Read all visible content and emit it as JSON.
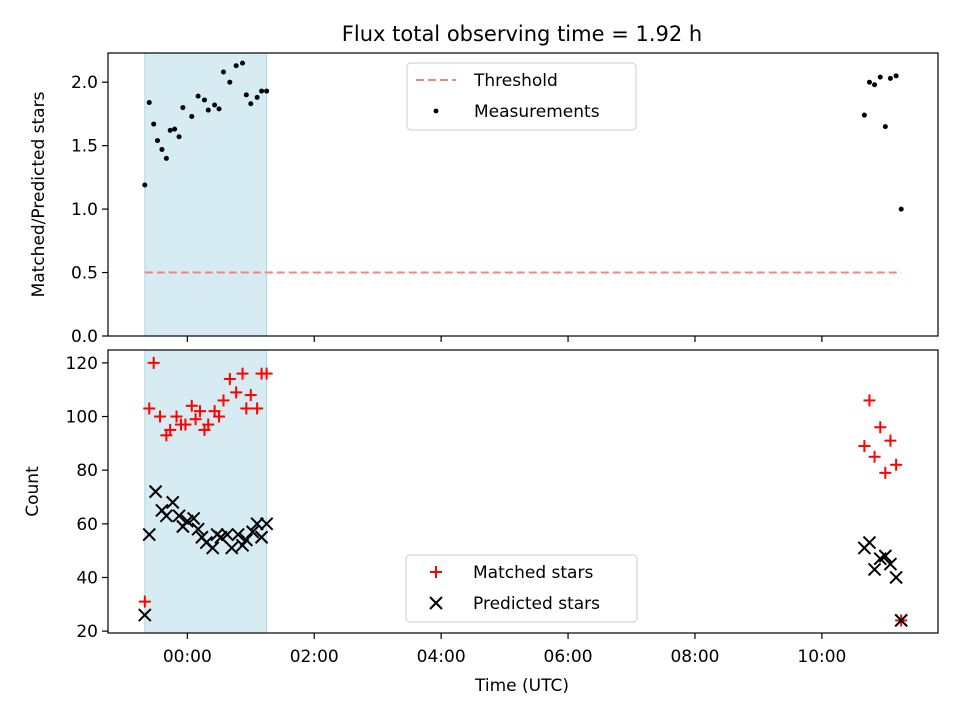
{
  "chart_data": [
    {
      "type": "scatter",
      "title": "Flux total observing time = 1.92 h",
      "xlabel": "",
      "ylabel": "Matched/Predicted stars",
      "xlim_hours": [
        -1.25,
        11.83
      ],
      "ylim": [
        0,
        2.23
      ],
      "yticks": [
        0.0,
        0.5,
        1.0,
        1.5,
        2.0
      ],
      "ytick_labels": [
        "0.0",
        "0.5",
        "1.0",
        "1.5",
        "2.0"
      ],
      "shaded_interval_hours": [
        -0.67,
        1.25
      ],
      "shade_color": "#add8e6",
      "legend_position": "upper center",
      "threshold": {
        "name": "Threshold",
        "value": 0.5,
        "x_range_hours": [
          -0.67,
          11.25
        ],
        "color": "#ff7f7f",
        "style": "dashed"
      },
      "series": [
        {
          "name": "Measurements",
          "marker": "dot",
          "color": "#000000",
          "x": [
            -0.67,
            -0.6,
            -0.53,
            -0.47,
            -0.4,
            -0.33,
            -0.27,
            -0.2,
            -0.13,
            -0.07,
            0.07,
            0.17,
            0.27,
            0.33,
            0.43,
            0.5,
            0.57,
            0.67,
            0.77,
            0.87,
            0.93,
            1.0,
            1.1,
            1.17,
            1.25,
            10.67,
            10.75,
            10.83,
            10.92,
            11.0,
            11.08,
            11.17,
            11.25
          ],
          "y": [
            1.19,
            1.84,
            1.67,
            1.54,
            1.47,
            1.4,
            1.62,
            1.63,
            1.57,
            1.8,
            1.73,
            1.89,
            1.86,
            1.78,
            1.82,
            1.79,
            2.08,
            2.0,
            2.13,
            2.15,
            1.9,
            1.83,
            1.88,
            1.93,
            1.93,
            1.74,
            2.0,
            1.98,
            2.04,
            1.65,
            2.03,
            2.05,
            1.0
          ]
        }
      ]
    },
    {
      "type": "scatter",
      "title": "",
      "xlabel": "Time (UTC)",
      "ylabel": "Count",
      "xlim_hours": [
        -1.25,
        11.83
      ],
      "ylim": [
        19.3,
        124.8
      ],
      "yticks": [
        20,
        40,
        60,
        80,
        100,
        120
      ],
      "ytick_labels": [
        "20",
        "40",
        "60",
        "80",
        "100",
        "120"
      ],
      "xticks_hours": [
        0,
        2,
        4,
        6,
        8,
        10
      ],
      "xtick_labels": [
        "00:00",
        "02:00",
        "04:00",
        "06:00",
        "08:00",
        "10:00"
      ],
      "shaded_interval_hours": [
        -0.67,
        1.25
      ],
      "shade_color": "#add8e6",
      "legend_position": "lower center",
      "series": [
        {
          "name": "Matched stars",
          "marker": "plus",
          "color": "#ff0000",
          "x": [
            -0.67,
            -0.6,
            -0.53,
            -0.43,
            -0.33,
            -0.27,
            -0.17,
            -0.1,
            -0.03,
            0.07,
            0.13,
            0.2,
            0.27,
            0.33,
            0.43,
            0.5,
            0.57,
            0.67,
            0.77,
            0.87,
            0.93,
            1.0,
            1.1,
            1.17,
            1.25,
            10.67,
            10.75,
            10.83,
            10.92,
            11.0,
            11.08,
            11.17,
            11.25
          ],
          "y": [
            31,
            103,
            120,
            100,
            93,
            95,
            100,
            97,
            97,
            104,
            99,
            102,
            95,
            97,
            102,
            100,
            106,
            114,
            109,
            116,
            103,
            108,
            103,
            116,
            116,
            89,
            106,
            85,
            96,
            79,
            91,
            82,
            24
          ]
        },
        {
          "name": "Predicted stars",
          "marker": "x",
          "color": "#000000",
          "x": [
            -0.67,
            -0.6,
            -0.5,
            -0.4,
            -0.33,
            -0.23,
            -0.13,
            -0.07,
            0.0,
            0.1,
            0.17,
            0.23,
            0.3,
            0.4,
            0.47,
            0.53,
            0.63,
            0.7,
            0.8,
            0.87,
            0.93,
            1.03,
            1.1,
            1.17,
            1.25,
            10.67,
            10.75,
            10.83,
            10.92,
            11.0,
            11.08,
            11.17,
            11.25
          ],
          "y": [
            26,
            56,
            72,
            65,
            63,
            68,
            63,
            59,
            61,
            62,
            58,
            55,
            53,
            51,
            56,
            55,
            56,
            51,
            56,
            52,
            54,
            57,
            60,
            55,
            60,
            51,
            53,
            43,
            47,
            48,
            45,
            40,
            24
          ]
        }
      ]
    }
  ]
}
